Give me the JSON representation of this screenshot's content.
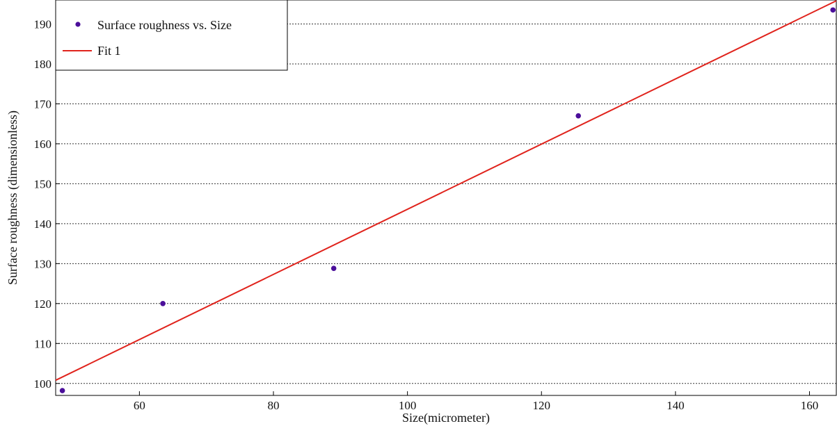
{
  "chart_data": {
    "type": "scatter",
    "xlabel": "Size(micrometer)",
    "ylabel": "Surface roughness (dimensionless)",
    "xlim": [
      47.5,
      164
    ],
    "ylim": [
      97,
      196
    ],
    "x_ticks": [
      60,
      80,
      100,
      120,
      140,
      160
    ],
    "y_ticks": [
      100,
      110,
      120,
      130,
      140,
      150,
      160,
      170,
      180,
      190
    ],
    "grid": "horizontal-dotted",
    "legend_position": "top-left",
    "series": [
      {
        "name": "Surface roughness vs. Size",
        "kind": "scatter",
        "color": "#4b0f9a",
        "points": [
          {
            "x": 48.5,
            "y": 98.2
          },
          {
            "x": 63.5,
            "y": 120.0
          },
          {
            "x": 89.0,
            "y": 128.8
          },
          {
            "x": 125.5,
            "y": 167.0
          },
          {
            "x": 163.5,
            "y": 193.5
          }
        ]
      },
      {
        "name": "Fit 1",
        "kind": "line",
        "color": "#e0231c",
        "points": [
          {
            "x": 47.5,
            "y": 100.8
          },
          {
            "x": 164,
            "y": 195.8
          }
        ]
      }
    ]
  }
}
